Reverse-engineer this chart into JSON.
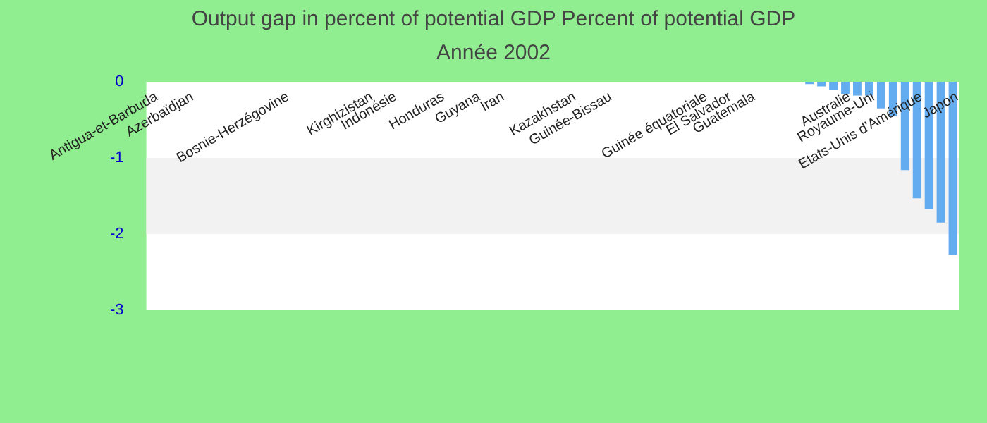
{
  "chart_data": {
    "type": "bar",
    "title": "Output gap in percent of potential GDP  Percent of potential GDP",
    "subtitle": "Année 2002",
    "categories": [
      "Antigua-et-Barbuda",
      null,
      null,
      "Azerbaïdjan",
      null,
      null,
      null,
      null,
      null,
      null,
      null,
      "Bosnie-Herzégovine",
      null,
      null,
      null,
      null,
      null,
      null,
      "Kirghizistan",
      null,
      "Indonésie",
      null,
      null,
      null,
      "Honduras",
      null,
      null,
      "Guyana",
      null,
      "Iran",
      null,
      null,
      null,
      null,
      null,
      "Kazakhstan",
      null,
      null,
      "Guinée-Bissau",
      null,
      null,
      null,
      null,
      null,
      null,
      null,
      "Guinée équatoriale",
      null,
      "El Salvador",
      null,
      "Guatemala",
      null,
      null,
      null,
      null,
      null,
      null,
      null,
      "Australie",
      null,
      "Royaume-Uni",
      null,
      null,
      null,
      "Etats-Unis d'Amérique",
      null,
      null,
      "Japon"
    ],
    "values": [
      0,
      0,
      0,
      0,
      0,
      0,
      0,
      0,
      0,
      0,
      0,
      0,
      0,
      0,
      0,
      0,
      0,
      0,
      0,
      0,
      0,
      0,
      0,
      0,
      0,
      0,
      0,
      0,
      0,
      0,
      0,
      0,
      0,
      0,
      0,
      0,
      0,
      0,
      0,
      0,
      0,
      0,
      0,
      0,
      0,
      0,
      0,
      0,
      0,
      0,
      0,
      0,
      0,
      0,
      0,
      -0.03,
      -0.06,
      -0.11,
      -0.16,
      -0.18,
      -0.18,
      -0.35,
      -0.45,
      -1.16,
      -1.53,
      -1.67,
      -1.85,
      -2.27
    ],
    "color": "#64acf0",
    "ylim": [
      -3,
      0
    ],
    "yticks": [
      0,
      -1,
      -2,
      -3
    ],
    "bands": [
      {
        "axis": "y",
        "from": -2,
        "to": -1,
        "color": "#f2f2f2"
      }
    ],
    "legend": false
  }
}
